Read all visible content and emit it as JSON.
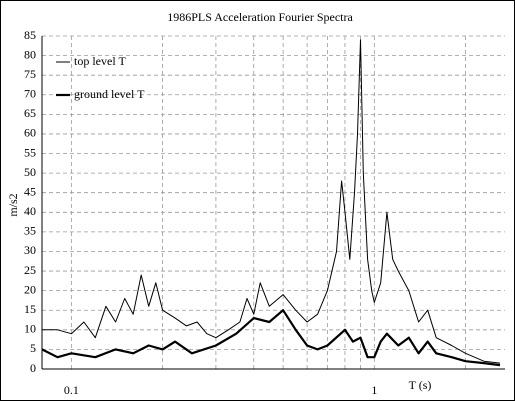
{
  "chart_data": {
    "type": "line",
    "title": "1986PLS   Acceleration Fourier Spectra",
    "xlabel": "T (s)",
    "ylabel": "m/s2",
    "xscale": "log",
    "xlim": [
      0.08,
      2.7
    ],
    "xticks": [
      0.1,
      1
    ],
    "xgrid": [
      0.2,
      0.3,
      0.4,
      0.5,
      0.6,
      0.7,
      0.8,
      0.9,
      2
    ],
    "ylim": [
      0,
      85
    ],
    "yticks": [
      0,
      5,
      10,
      15,
      20,
      25,
      30,
      35,
      40,
      45,
      50,
      55,
      60,
      65,
      70,
      75,
      80,
      85
    ],
    "grid": true,
    "legend": "upper left",
    "series": [
      {
        "name": "top level  T",
        "color": "#000000",
        "line_width": 1,
        "x": [
          0.08,
          0.09,
          0.1,
          0.11,
          0.12,
          0.13,
          0.14,
          0.15,
          0.16,
          0.17,
          0.18,
          0.19,
          0.2,
          0.22,
          0.24,
          0.26,
          0.28,
          0.3,
          0.33,
          0.36,
          0.38,
          0.4,
          0.42,
          0.45,
          0.5,
          0.55,
          0.6,
          0.65,
          0.7,
          0.75,
          0.78,
          0.8,
          0.83,
          0.86,
          0.88,
          0.9,
          0.92,
          0.95,
          0.98,
          1.0,
          1.05,
          1.1,
          1.15,
          1.2,
          1.3,
          1.4,
          1.5,
          1.6,
          1.8,
          2.0,
          2.3,
          2.6
        ],
        "values": [
          10,
          10,
          9,
          12,
          8,
          16,
          12,
          18,
          14,
          24,
          16,
          22,
          15,
          13,
          11,
          12,
          9,
          8,
          10,
          12,
          18,
          14,
          22,
          16,
          19,
          15,
          12,
          14,
          20,
          30,
          48,
          40,
          28,
          45,
          60,
          84,
          50,
          28,
          20,
          17,
          22,
          40,
          28,
          25,
          20,
          12,
          15,
          8,
          6,
          4,
          2,
          1.5
        ]
      },
      {
        "name": "ground level  T",
        "color": "#000000",
        "line_width": 2.2,
        "x": [
          0.08,
          0.09,
          0.1,
          0.12,
          0.14,
          0.16,
          0.18,
          0.2,
          0.22,
          0.25,
          0.3,
          0.35,
          0.4,
          0.45,
          0.5,
          0.55,
          0.6,
          0.65,
          0.7,
          0.8,
          0.85,
          0.9,
          0.95,
          1.0,
          1.05,
          1.1,
          1.2,
          1.3,
          1.4,
          1.5,
          1.6,
          1.8,
          2.0,
          2.3,
          2.6
        ],
        "values": [
          5,
          3,
          4,
          3,
          5,
          4,
          6,
          5,
          7,
          4,
          6,
          9,
          13,
          12,
          15,
          10,
          6,
          5,
          6,
          10,
          7,
          8,
          3,
          3,
          7,
          9,
          6,
          8,
          4,
          7,
          4,
          3,
          2,
          1.5,
          1
        ]
      }
    ]
  }
}
